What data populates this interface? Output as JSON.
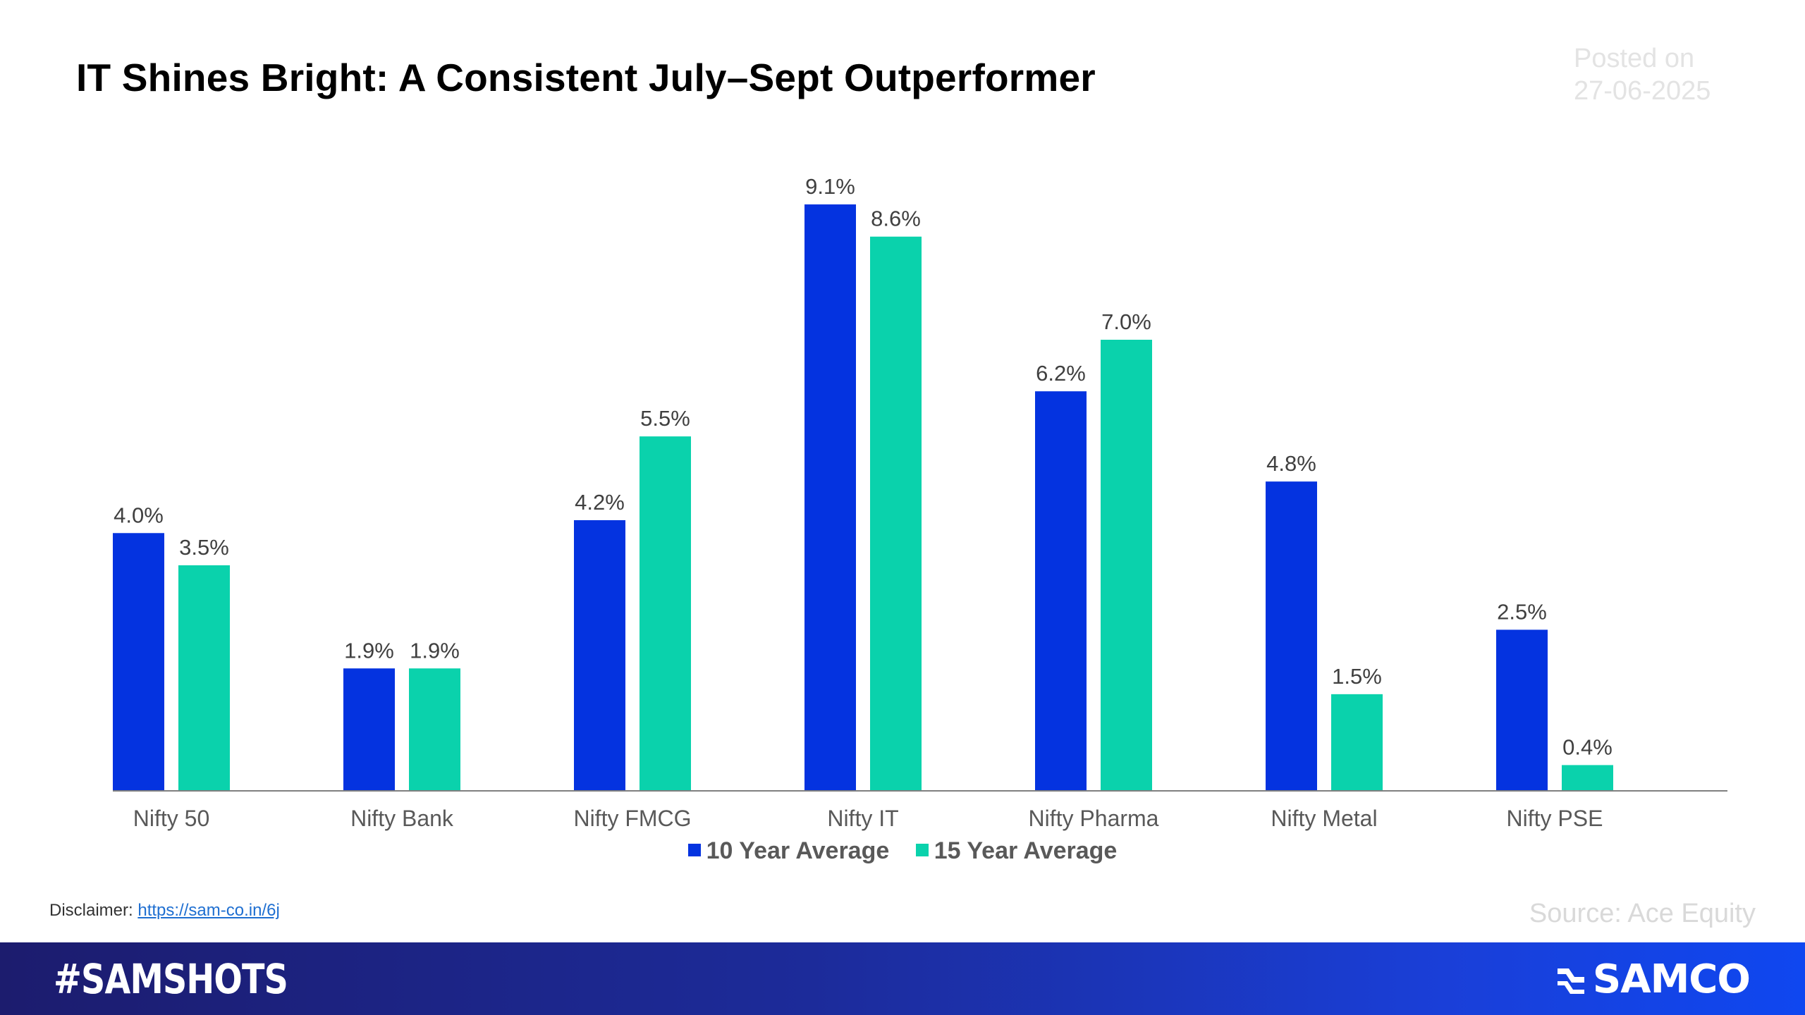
{
  "header": {
    "title": "IT Shines Bright: A Consistent July–Sept Outperformer",
    "posted_label": "Posted on",
    "posted_date": "27-06-2025"
  },
  "chart_data": {
    "type": "bar",
    "categories": [
      "Nifty 50",
      "Nifty Bank",
      "Nifty FMCG",
      "Nifty IT",
      "Nifty Pharma",
      "Nifty Metal",
      "Nifty PSE"
    ],
    "series": [
      {
        "name": "10 Year Average",
        "color": "#0433e0",
        "values": [
          4.0,
          1.9,
          4.2,
          9.1,
          6.2,
          4.8,
          2.5
        ],
        "labels": [
          "4.0%",
          "1.9%",
          "4.2%",
          "9.1%",
          "6.2%",
          "4.8%",
          "2.5%"
        ]
      },
      {
        "name": "15 Year Average",
        "color": "#0ad2ac",
        "values": [
          3.5,
          1.9,
          5.5,
          8.6,
          7.0,
          1.5,
          0.4
        ],
        "labels": [
          "3.5%",
          "1.9%",
          "5.5%",
          "8.6%",
          "7.0%",
          "1.5%",
          "0.4%"
        ]
      }
    ],
    "ylim": [
      0,
      9.1
    ],
    "grid": false,
    "legend_position": "bottom"
  },
  "footer": {
    "disclaimer_label": "Disclaimer:",
    "disclaimer_link": "https://sam-co.in/6j",
    "source": "Source: Ace Equity",
    "tag": "#SAMSHOTS",
    "brand": "SAMCO",
    "brand_icon": "samco-logo-icon"
  }
}
